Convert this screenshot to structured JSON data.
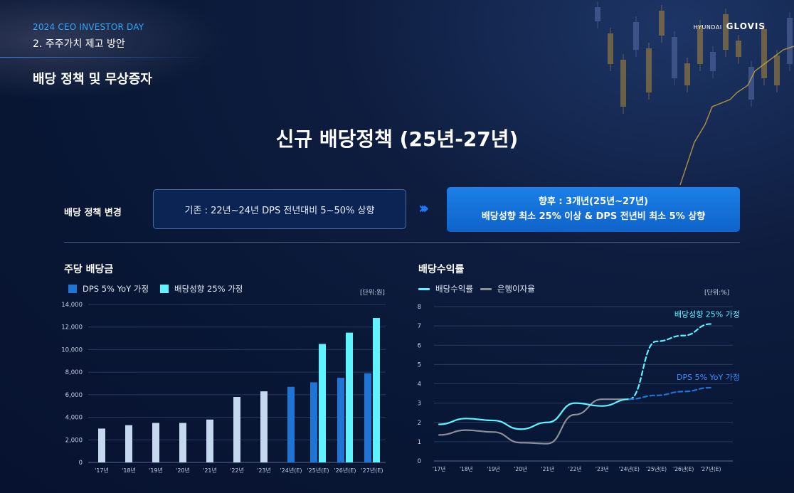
{
  "header": {
    "event": "2024 CEO INVESTOR DAY",
    "section": "2. 주주가치 제고 방안",
    "title": "배당 정책 및 무상증자",
    "logo_small": "HYUNDAI",
    "logo_main": "GLOVIS"
  },
  "main_title": "신규 배당정책 (25년-27년)",
  "policy": {
    "label": "배당 정책 변경",
    "old": "기존 : 22년~24년 DPS 전년대비 5~50% 상향",
    "arrow": "›››",
    "new_line1": "향후 : 3개년(25년~27년)",
    "new_line2": "배당성향 최소 25% 이상 & DPS 전년비 최소 5% 상향"
  },
  "colors": {
    "accent_blue": "#1f74d6",
    "accent_cyan": "#5ff3ff",
    "historical": "#c6d8f0",
    "bank_rate": "#8a8f98",
    "dps_line": "#1f74d6"
  },
  "chart_data": [
    {
      "type": "bar",
      "title": "주당 배당금",
      "unit": "[단위:원]",
      "categories": [
        "'17년",
        "'18년",
        "'19년",
        "'20년",
        "'21년",
        "'22년",
        "'23년",
        "'24년(E)",
        "'25년(E)",
        "'26년(E)",
        "'27년(E)"
      ],
      "ylim": [
        0,
        14000
      ],
      "yticks": [
        0,
        2000,
        4000,
        6000,
        8000,
        10000,
        12000,
        14000
      ],
      "ytick_labels": [
        "0",
        "2,000",
        "4,000",
        "6,000",
        "8,000",
        "10,000",
        "12,000",
        "14,000"
      ],
      "historical": [
        3000,
        3300,
        3500,
        3500,
        3800,
        5800,
        6300,
        null,
        null,
        null,
        null
      ],
      "series": [
        {
          "name": "DPS 5% YoY 가정",
          "values": [
            null,
            null,
            null,
            null,
            null,
            null,
            null,
            6700,
            7100,
            7500,
            7900
          ]
        },
        {
          "name": "배당성향 25% 가정",
          "values": [
            null,
            null,
            null,
            null,
            null,
            null,
            null,
            null,
            10500,
            11500,
            12800
          ]
        }
      ]
    },
    {
      "type": "line",
      "title": "배당수익률",
      "unit": "[단위:%]",
      "categories": [
        "'17년",
        "'18년",
        "'19년",
        "'20년",
        "'21년",
        "'22년",
        "'23년",
        "'24년(E)",
        "'25년(E)",
        "'26년(E)",
        "'27년(E)"
      ],
      "ylim": [
        0,
        8
      ],
      "yticks": [
        0,
        1,
        2,
        3,
        4,
        5,
        6,
        7,
        8
      ],
      "series": [
        {
          "name": "배당수익률",
          "values": [
            1.9,
            2.2,
            2.1,
            1.65,
            2.0,
            3.0,
            2.85,
            3.2,
            null,
            null,
            null
          ]
        },
        {
          "name": "은행이자율",
          "values": [
            1.35,
            1.6,
            1.5,
            0.95,
            0.9,
            2.4,
            3.2,
            3.2,
            null,
            null,
            null
          ]
        },
        {
          "name": "배당성향 25% 가정",
          "values": [
            null,
            null,
            null,
            null,
            null,
            null,
            null,
            3.2,
            6.2,
            6.5,
            7.1
          ]
        },
        {
          "name": "DPS 5% YoY 가정",
          "values": [
            null,
            null,
            null,
            null,
            null,
            null,
            null,
            3.2,
            3.4,
            3.6,
            3.8
          ]
        }
      ],
      "annotations": [
        "배당성향 25% 가정",
        "DPS 5% YoY 가정"
      ]
    }
  ]
}
